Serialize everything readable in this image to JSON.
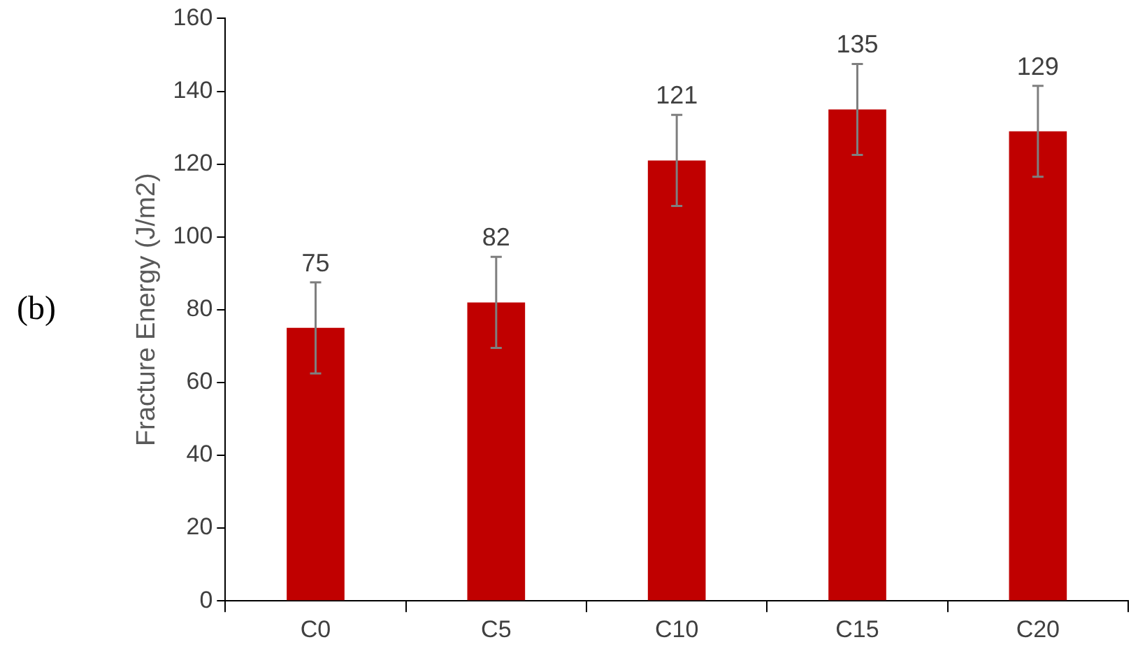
{
  "chart_data": {
    "type": "bar",
    "ylabel": "Fracture Energy (J/m2)",
    "categories": [
      "C0",
      "C5",
      "C10",
      "C15",
      "C20"
    ],
    "values": [
      75,
      82,
      121,
      135,
      129
    ],
    "color": "#c00000",
    "errors": [
      12.5,
      12.5,
      12.5,
      12.5,
      12.5
    ],
    "data_labels": true,
    "ylim": [
      0,
      160
    ],
    "yticks": [
      0,
      20,
      40,
      60,
      80,
      100,
      120,
      140,
      160
    ],
    "grid": false,
    "legend": false,
    "annotations": [
      "(b)"
    ]
  }
}
